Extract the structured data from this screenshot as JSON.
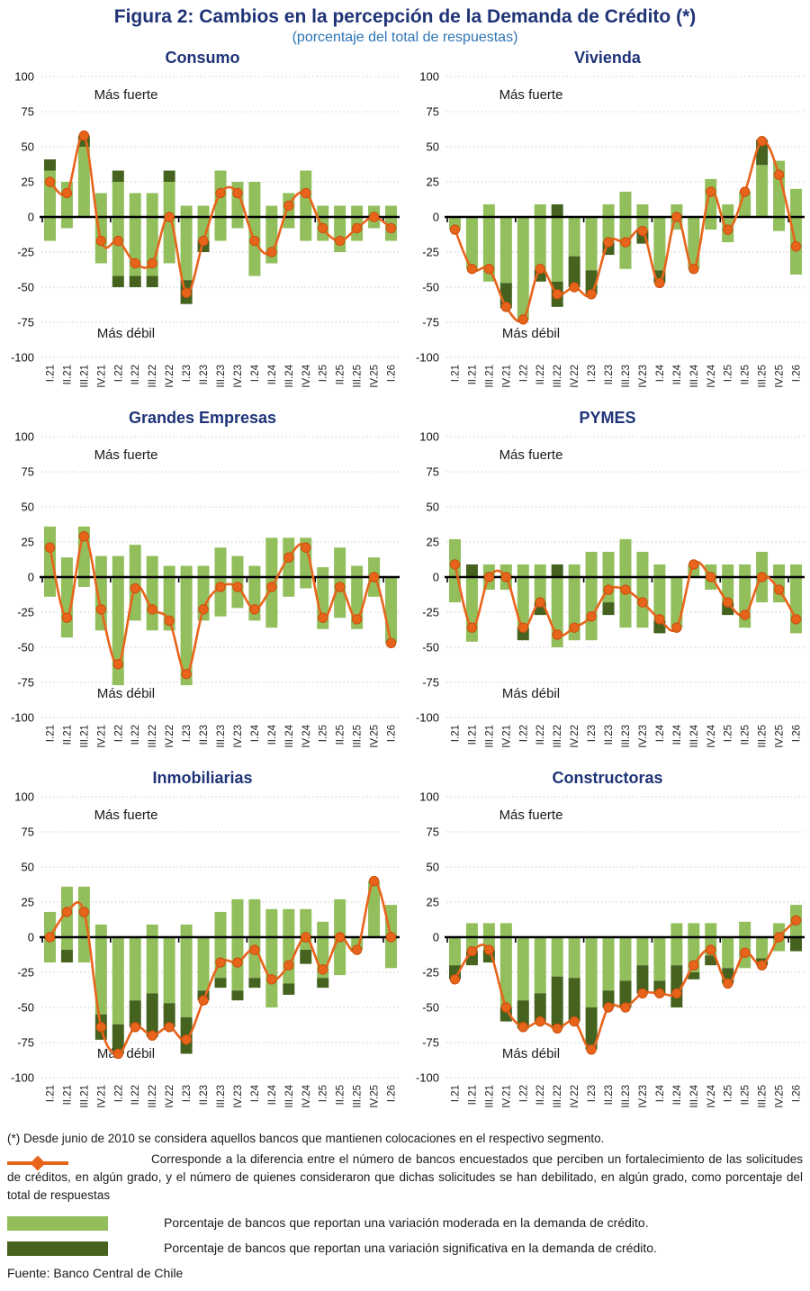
{
  "header": {
    "title": "Figura 2: Cambios en la percepción de la Demanda de Crédito (*)",
    "subtitle": "(porcentaje del total de respuestas)"
  },
  "colors": {
    "title_navy": "#1F3377",
    "subtitle_blue": "#2E75B6",
    "moderate_green": "#92BE5C",
    "significant_green": "#45621F",
    "line_orange": "#E8641B",
    "marker_stroke": "#C9500E",
    "grid": "#C9C9C9",
    "axis": "#000000",
    "label_text": "#1a1a1a"
  },
  "chart_data": {
    "type": "bar",
    "subtype": "stacked-diverging-bars-with-net-line",
    "categories": [
      "I.21",
      "II.21",
      "III.21",
      "IV.21",
      "I.22",
      "II.22",
      "III.22",
      "IV.22",
      "I.23",
      "II.23",
      "III.23",
      "IV.23",
      "I.24",
      "II.24",
      "III.24",
      "IV.24",
      "I.25",
      "II.25",
      "III.25",
      "IV.25",
      "I.26"
    ],
    "y_ticks": [
      100,
      75,
      50,
      25,
      0,
      -25,
      -50,
      -75,
      -100
    ],
    "ylim": [
      -100,
      100
    ],
    "upper_label": "Más fuerte",
    "lower_label": "Más débil",
    "grid": "dotted",
    "legend_position": "bottom",
    "charts": [
      {
        "title": "Consumo",
        "pos_mod": [
          33,
          25,
          50,
          17,
          25,
          17,
          17,
          25,
          8,
          8,
          33,
          25,
          25,
          8,
          17,
          33,
          8,
          8,
          8,
          8,
          8
        ],
        "pos_sig": [
          8,
          0,
          8,
          0,
          8,
          0,
          0,
          8,
          0,
          0,
          0,
          0,
          0,
          0,
          0,
          0,
          0,
          0,
          0,
          0,
          0
        ],
        "neg_mod": [
          17,
          8,
          0,
          33,
          42,
          42,
          42,
          33,
          45,
          17,
          17,
          8,
          42,
          33,
          8,
          17,
          17,
          25,
          17,
          8,
          17
        ],
        "neg_sig": [
          0,
          0,
          0,
          0,
          8,
          8,
          8,
          0,
          17,
          8,
          0,
          0,
          0,
          0,
          0,
          0,
          0,
          0,
          0,
          0,
          0
        ],
        "net": [
          25,
          17,
          58,
          -17,
          -17,
          -33,
          -33,
          0,
          -54,
          -17,
          17,
          17,
          -17,
          -25,
          8,
          17,
          -8,
          -17,
          -8,
          0,
          -8
        ]
      },
      {
        "title": "Vivienda",
        "pos_mod": [
          0,
          0,
          9,
          0,
          0,
          9,
          0,
          0,
          0,
          9,
          18,
          9,
          0,
          9,
          0,
          27,
          9,
          18,
          37,
          40,
          20
        ],
        "pos_sig": [
          0,
          0,
          0,
          0,
          0,
          0,
          9,
          0,
          0,
          0,
          0,
          0,
          0,
          0,
          0,
          0,
          0,
          0,
          18,
          0,
          0
        ],
        "neg_mod": [
          9,
          37,
          46,
          47,
          73,
          38,
          46,
          28,
          38,
          18,
          37,
          10,
          38,
          9,
          37,
          9,
          18,
          0,
          0,
          10,
          41
        ],
        "neg_sig": [
          0,
          0,
          0,
          18,
          0,
          8,
          18,
          22,
          17,
          9,
          0,
          9,
          9,
          0,
          0,
          0,
          0,
          0,
          0,
          0,
          0
        ],
        "net": [
          -9,
          -37,
          -37,
          -64,
          -73,
          -37,
          -55,
          -50,
          -55,
          -18,
          -18,
          -10,
          -47,
          0,
          -37,
          18,
          -9,
          18,
          54,
          30,
          -21
        ]
      },
      {
        "title": "Grandes Empresas",
        "pos_mod": [
          36,
          14,
          36,
          15,
          15,
          23,
          15,
          8,
          8,
          8,
          21,
          15,
          8,
          28,
          28,
          28,
          7,
          21,
          8,
          14,
          0
        ],
        "pos_sig": [
          0,
          0,
          0,
          0,
          0,
          0,
          0,
          0,
          0,
          0,
          0,
          0,
          0,
          0,
          0,
          0,
          0,
          0,
          0,
          0,
          0
        ],
        "neg_mod": [
          14,
          43,
          7,
          38,
          77,
          31,
          38,
          38,
          77,
          31,
          28,
          22,
          31,
          36,
          14,
          8,
          37,
          29,
          37,
          14,
          47
        ],
        "neg_sig": [
          0,
          0,
          0,
          0,
          0,
          0,
          0,
          0,
          0,
          0,
          0,
          0,
          0,
          0,
          0,
          0,
          0,
          0,
          0,
          0,
          0
        ],
        "net": [
          21,
          -29,
          29,
          -23,
          -62,
          -8,
          -23,
          -31,
          -69,
          -23,
          -7,
          -7,
          -23,
          -7,
          14,
          21,
          -29,
          -7,
          -30,
          0,
          -47
        ]
      },
      {
        "title": "PYMES",
        "pos_mod": [
          27,
          0,
          9,
          9,
          9,
          9,
          0,
          9,
          18,
          18,
          27,
          18,
          9,
          0,
          9,
          9,
          9,
          9,
          18,
          9,
          9
        ],
        "pos_sig": [
          0,
          9,
          0,
          0,
          0,
          0,
          9,
          0,
          0,
          0,
          0,
          0,
          0,
          0,
          0,
          0,
          0,
          0,
          0,
          0,
          0
        ],
        "neg_mod": [
          18,
          46,
          9,
          9,
          36,
          18,
          50,
          45,
          45,
          18,
          36,
          36,
          31,
          36,
          0,
          9,
          18,
          36,
          18,
          18,
          40
        ],
        "neg_sig": [
          0,
          0,
          0,
          0,
          9,
          9,
          0,
          0,
          0,
          9,
          0,
          0,
          9,
          0,
          0,
          0,
          9,
          0,
          0,
          0,
          0
        ],
        "net": [
          9,
          -36,
          0,
          0,
          -36,
          -18,
          -41,
          -36,
          -28,
          -9,
          -9,
          -18,
          -30,
          -36,
          9,
          0,
          -18,
          -27,
          0,
          -9,
          -30
        ]
      },
      {
        "title": "Inmobiliarias",
        "pos_mod": [
          18,
          36,
          36,
          9,
          0,
          0,
          9,
          0,
          9,
          0,
          18,
          27,
          27,
          20,
          20,
          20,
          11,
          27,
          0,
          40,
          23
        ],
        "pos_sig": [
          0,
          0,
          0,
          0,
          0,
          0,
          0,
          0,
          0,
          0,
          0,
          0,
          0,
          0,
          0,
          0,
          0,
          0,
          0,
          0,
          0
        ],
        "neg_mod": [
          18,
          9,
          18,
          55,
          62,
          45,
          40,
          47,
          57,
          38,
          29,
          38,
          29,
          50,
          33,
          9,
          29,
          27,
          9,
          0,
          22
        ],
        "neg_sig": [
          0,
          9,
          0,
          18,
          21,
          19,
          31,
          17,
          26,
          7,
          7,
          7,
          7,
          0,
          8,
          10,
          7,
          0,
          0,
          0,
          0
        ],
        "net": [
          0,
          18,
          18,
          -64,
          -83,
          -64,
          -70,
          -64,
          -73,
          -45,
          -18,
          -18,
          -9,
          -30,
          -20,
          0,
          -23,
          0,
          -9,
          40,
          0
        ]
      },
      {
        "title": "Constructoras",
        "pos_mod": [
          0,
          10,
          10,
          10,
          0,
          0,
          0,
          0,
          0,
          0,
          0,
          0,
          0,
          10,
          10,
          10,
          0,
          11,
          0,
          10,
          23
        ],
        "pos_sig": [
          0,
          0,
          0,
          0,
          0,
          0,
          0,
          0,
          0,
          0,
          0,
          0,
          0,
          0,
          0,
          0,
          0,
          0,
          0,
          0,
          0
        ],
        "neg_mod": [
          20,
          10,
          9,
          50,
          45,
          40,
          28,
          29,
          50,
          38,
          31,
          20,
          31,
          20,
          25,
          13,
          22,
          22,
          15,
          10,
          0
        ],
        "neg_sig": [
          10,
          10,
          9,
          10,
          20,
          20,
          37,
          31,
          30,
          12,
          19,
          20,
          9,
          30,
          5,
          7,
          11,
          0,
          5,
          0,
          10
        ],
        "net": [
          -30,
          -10,
          -9,
          -50,
          -64,
          -60,
          -65,
          -60,
          -80,
          -50,
          -50,
          -40,
          -40,
          -40,
          -20,
          -9,
          -33,
          -11,
          -20,
          0,
          12
        ]
      }
    ]
  },
  "footnotes": {
    "asterisk": "(*) Desde junio de 2010 se considera aquellos bancos que mantienen colocaciones en el respectivo segmento.",
    "net_line": "Corresponde a la diferencia entre el número de bancos encuestados que perciben un fortalecimiento de las solicitudes de créditos, en algún grado, y el número de quienes consideraron que dichas solicitudes se han debilitado, en algún grado, como porcentaje del total de respuestas",
    "legend_moderate": "Porcentaje de bancos que reportan una variación moderada en la demanda de crédito.",
    "legend_significant": "Porcentaje de bancos que reportan una variación significativa en la demanda de crédito.",
    "source": "Fuente: Banco Central de Chile"
  }
}
